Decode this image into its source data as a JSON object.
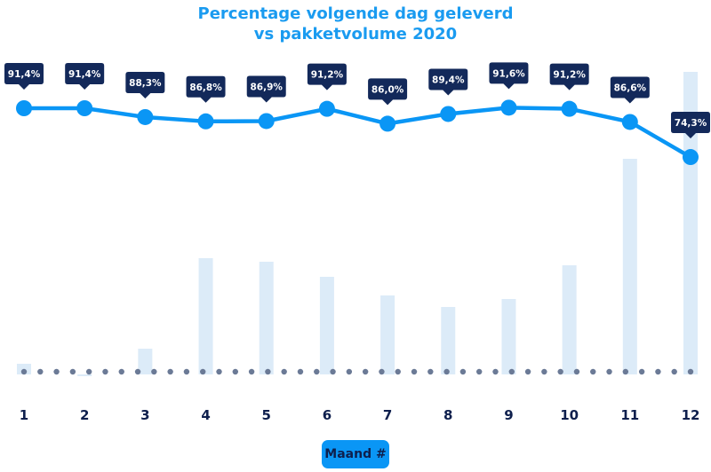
{
  "chart_data": {
    "type": "line+bar",
    "title": "Percentage volgende dag geleverd\nvs pakketvolume 2020",
    "title_lines": [
      "Percentage volgende dag geleverd",
      "vs pakketvolume 2020"
    ],
    "xlabel": "Maand #",
    "categories": [
      "1",
      "2",
      "3",
      "4",
      "5",
      "6",
      "7",
      "8",
      "9",
      "10",
      "11",
      "12"
    ],
    "series": [
      {
        "kind": "line",
        "values": [
          91.4,
          91.4,
          88.3,
          86.8,
          86.9,
          91.2,
          86.0,
          89.4,
          91.6,
          91.2,
          86.6,
          74.3
        ],
        "labels": [
          "91,4%",
          "91,4%",
          "88,3%",
          "86,8%",
          "86,9%",
          "91,2%",
          "86,0%",
          "89,4%",
          "91,6%",
          "91,2%",
          "86,6%",
          "74,3%"
        ]
      },
      {
        "kind": "bar",
        "values": [
          12,
          -2,
          29,
          131,
          127,
          110,
          89,
          76,
          85,
          123,
          243,
          341
        ]
      }
    ],
    "grid": false,
    "colors": {
      "title": "#1a9bf0",
      "line": "#0a96f5",
      "bar": "#dcebf8",
      "label_bg": "#13295a",
      "baseline_dots": "#6b7a96",
      "tick": "#0e1f4d"
    }
  }
}
